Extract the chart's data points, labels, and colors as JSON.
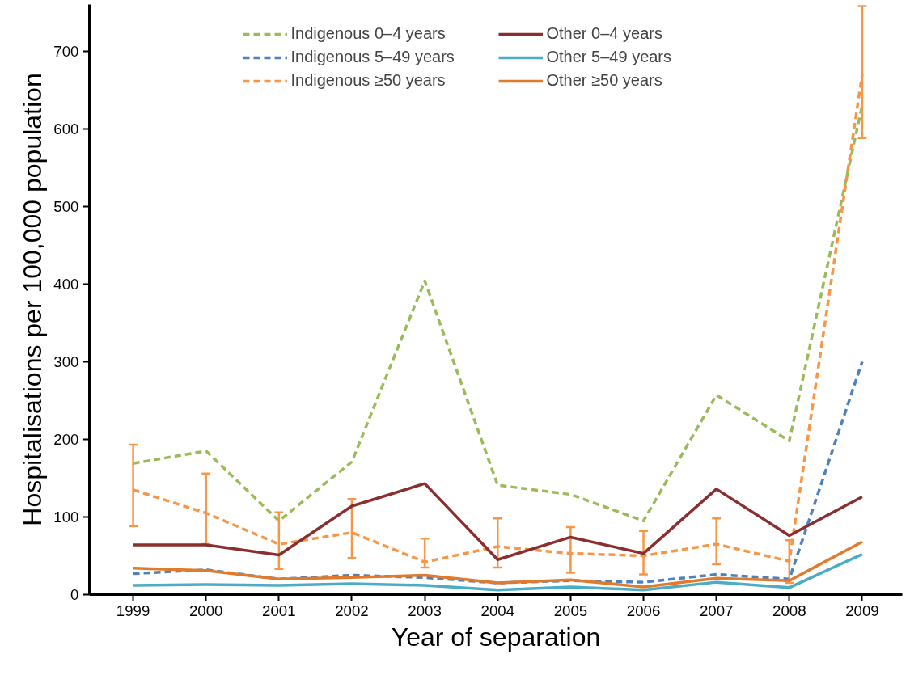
{
  "chart_data": {
    "type": "line",
    "xlabel": "Year of separation",
    "ylabel": "Hospitalisations per 100,000 population",
    "categories": [
      "1999",
      "2000",
      "2001",
      "2002",
      "2003",
      "2004",
      "2005",
      "2006",
      "2007",
      "2008",
      "2009"
    ],
    "ylim": [
      0,
      760
    ],
    "yticks": [
      0,
      100,
      200,
      300,
      400,
      500,
      600,
      700
    ],
    "grid": false,
    "legend": "top",
    "marker": "none",
    "series": [
      {
        "name": "Indigenous 0–4 years",
        "color": "#9bbb59",
        "line_style": "dashed",
        "values": [
          169,
          185,
          95,
          171,
          404,
          141,
          129,
          95,
          257,
          198,
          630
        ]
      },
      {
        "name": "Indigenous 5–49 years",
        "color": "#4f81bd",
        "line_style": "dashed",
        "values": [
          27,
          32,
          20,
          25,
          22,
          15,
          18,
          16,
          26,
          20,
          300
        ]
      },
      {
        "name": "Indigenous ≥50 years",
        "color": "#f79646",
        "line_style": "dashed",
        "values": [
          135,
          105,
          65,
          80,
          42,
          62,
          53,
          50,
          65,
          43,
          670
        ],
        "errors": [
          [
            88,
            193
          ],
          [
            65,
            156
          ],
          [
            33,
            106
          ],
          [
            47,
            123
          ],
          [
            35,
            72
          ],
          [
            35,
            98
          ],
          [
            28,
            87
          ],
          [
            26,
            82
          ],
          [
            39,
            98
          ],
          [
            15,
            70
          ],
          [
            588,
            758
          ]
        ]
      },
      {
        "name": "Other 0–4 years",
        "color": "#8b2e2e",
        "line_style": "solid",
        "values": [
          64,
          64,
          51,
          114,
          143,
          45,
          74,
          53,
          136,
          76,
          126
        ]
      },
      {
        "name": "Other 5–49 years",
        "color": "#4bacc6",
        "line_style": "solid",
        "values": [
          12,
          13,
          12,
          14,
          12,
          6,
          10,
          6,
          16,
          9,
          52
        ]
      },
      {
        "name": "Other ≥50 years",
        "color": "#e07b2e",
        "line_style": "solid",
        "values": [
          34,
          31,
          20,
          22,
          25,
          15,
          19,
          10,
          21,
          18,
          68
        ]
      }
    ]
  }
}
